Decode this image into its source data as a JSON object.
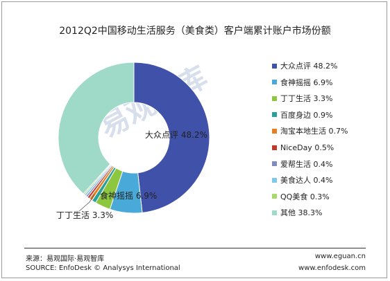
{
  "title": "2012Q2中国移动生活服务（美食类）客户端累计账户市场份额",
  "chart_data": {
    "type": "pie",
    "variant": "donut",
    "title": "2012Q2中国移动生活服务（美食类）客户端累计账户市场份额",
    "unit": "%",
    "legend_position": "right",
    "slices": [
      {
        "label": "大众点评",
        "value": 48.2,
        "color": "#3f51a8",
        "text": "大众点评 48.2%"
      },
      {
        "label": "食神摇摇",
        "value": 6.9,
        "color": "#49a9d9",
        "text": "食神摇摇 6.9%"
      },
      {
        "label": "丁丁生活",
        "value": 3.3,
        "color": "#8dc63f",
        "text": "丁丁生活 3.3%"
      },
      {
        "label": "百度身边",
        "value": 0.9,
        "color": "#2aa198",
        "text": "百度身边 0.9%"
      },
      {
        "label": "淘宝本地生活",
        "value": 0.7,
        "color": "#e67e22",
        "text": "淘宝本地生活 0.7%"
      },
      {
        "label": "NiceDay",
        "value": 0.5,
        "color": "#c0392b",
        "text": "NiceDay 0.5%"
      },
      {
        "label": "爱帮生活",
        "value": 0.4,
        "color": "#7f8cc4",
        "text": "爱帮生活 0.4%"
      },
      {
        "label": "美食达人",
        "value": 0.4,
        "color": "#7ec8ef",
        "text": "美食达人 0.4%"
      },
      {
        "label": "QQ美食",
        "value": 0.3,
        "color": "#a9d86e",
        "text": "QQ美食 0.3%"
      },
      {
        "label": "其他",
        "value": 38.3,
        "color": "#9fdac9",
        "text": "其他 38.3%"
      }
    ],
    "data_labels": [
      "大众点评 48.2%",
      "食神摇摇 6.9%",
      "丁丁生活 3.3%"
    ]
  },
  "watermark": "易观智库",
  "footer": {
    "source_cn": "来源：易观国际·易观智库",
    "source_en": "SOURCE: EnfoDesk © Analysys International",
    "url1": "www.eguan.cn",
    "url2": "www.enfodesk.com"
  }
}
